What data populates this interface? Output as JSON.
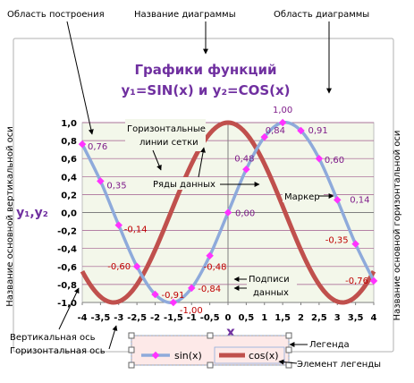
{
  "chart_data": {
    "type": "line",
    "title_line1": "Графики функций",
    "title_line2": "y₁=SIN(x) и y₂=COS(x)",
    "xlabel": "x",
    "ylabel": "y₁,y₂",
    "xlim": [
      -4,
      4
    ],
    "ylim": [
      -1,
      1
    ],
    "x_ticks": [
      "-4",
      "-3,5",
      "-3",
      "-2,5",
      "-2",
      "-1,5",
      "-1",
      "-0,5",
      "0",
      "0,5",
      "1",
      "1,5",
      "2",
      "2,5",
      "3",
      "3,5",
      "4"
    ],
    "y_ticks": [
      "1,0",
      "0,8",
      "0,6",
      "0,4",
      "0,2",
      "0,0",
      "-0,2",
      "-0,4",
      "-0,6",
      "-0,8",
      "-1,0"
    ],
    "grid": true,
    "series": [
      {
        "name": "sin(x)",
        "color": "#8eaadb",
        "marker_color": "#ff33ff",
        "points": [
          {
            "x": -4,
            "y": 0.76,
            "label": "0,76"
          },
          {
            "x": -3.5,
            "y": 0.35,
            "label": "0,35"
          },
          {
            "x": -3,
            "y": -0.14,
            "label": "-0,14"
          },
          {
            "x": -2.5,
            "y": -0.6,
            "label": "-0,60"
          },
          {
            "x": -2,
            "y": -0.91,
            "label": "-0,91"
          },
          {
            "x": -1.5,
            "y": -1.0,
            "label": "-1,00"
          },
          {
            "x": -1,
            "y": -0.84,
            "label": "-0,84"
          },
          {
            "x": -0.5,
            "y": -0.48,
            "label": "-0,48"
          },
          {
            "x": 0,
            "y": 0.0,
            "label": "0,00"
          },
          {
            "x": 0.5,
            "y": 0.48,
            "label": "0,48"
          },
          {
            "x": 1,
            "y": 0.84,
            "label": "0,84"
          },
          {
            "x": 1.5,
            "y": 1.0,
            "label": "1,00"
          },
          {
            "x": 2,
            "y": 0.91,
            "label": "0,91"
          },
          {
            "x": 2.5,
            "y": 0.6,
            "label": "0,60"
          },
          {
            "x": 3,
            "y": 0.14,
            "label": "0,14"
          },
          {
            "x": 3.5,
            "y": -0.35,
            "label": "-0,35"
          },
          {
            "x": 4,
            "y": -0.76,
            "label": "-0,76"
          }
        ]
      },
      {
        "name": "cos(x)",
        "color": "#c0504d",
        "function": "cos"
      }
    ],
    "legend_position": "bottom"
  },
  "callouts": {
    "plot_area": "Область построения",
    "chart_name": "Название диаграммы",
    "chart_area": "Область диаграммы",
    "vertical_axis_title": "Название основной вертикальной оси",
    "horizontal_axis_title": "Название основной горизонтальной оси",
    "gridlines": "Горизонтальные линии сетки",
    "data_series": "Ряды данных",
    "marker": "Маркер",
    "data_labels": "Подписи данных",
    "vertical_axis": "Вертикальная ось",
    "horizontal_axis": "Горизонтальная ось",
    "legend": "Легенда",
    "legend_entry": "Элемент легенды"
  }
}
